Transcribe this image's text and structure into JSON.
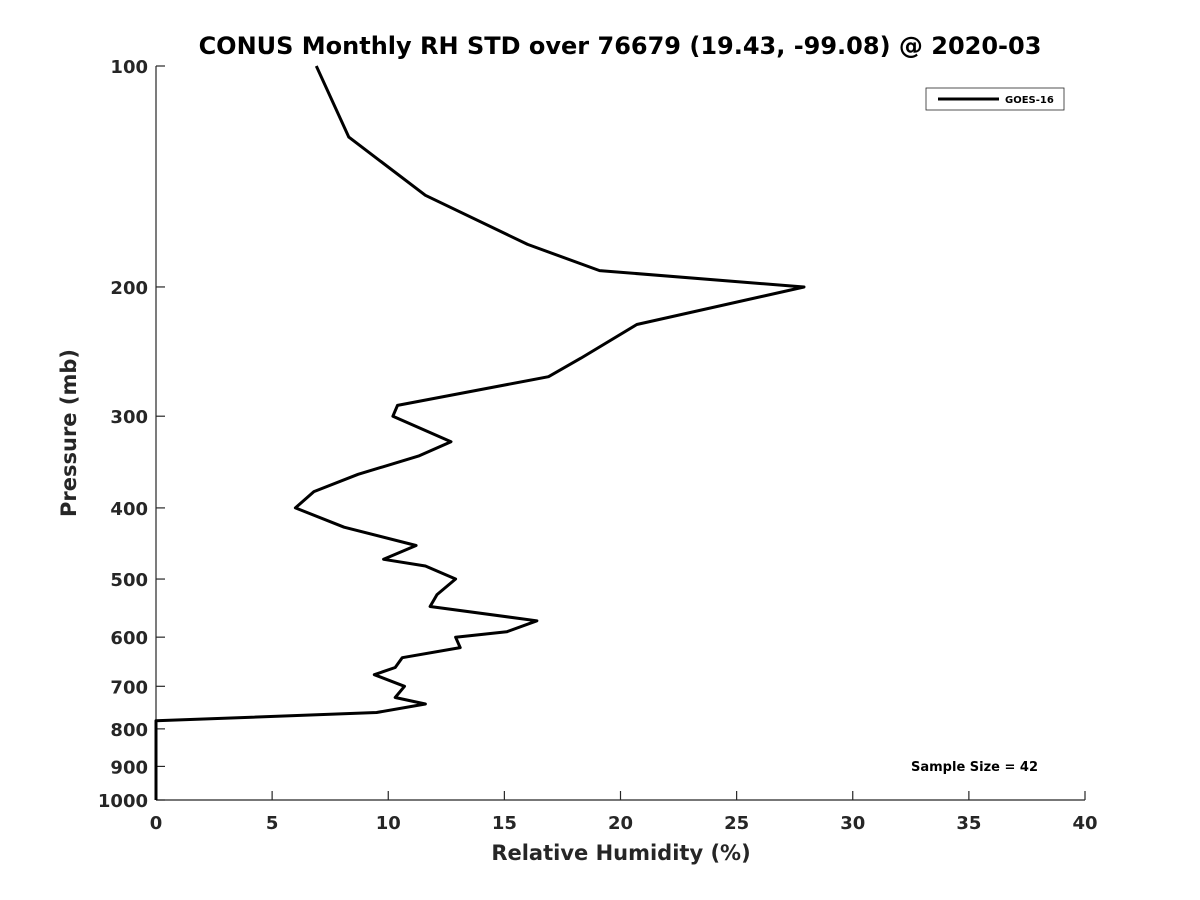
{
  "chart_data": {
    "type": "line",
    "title": "CONUS Monthly RH STD over 76679 (19.43, -99.08) @ 2020-03",
    "xlabel": "Relative Humidity (%)",
    "ylabel": "Pressure (mb)",
    "xlim": [
      0,
      40
    ],
    "ylim": [
      100,
      1000
    ],
    "y_scale": "log",
    "y_reversed": true,
    "x_ticks": [
      0,
      5,
      10,
      15,
      20,
      25,
      30,
      35,
      40
    ],
    "y_ticks": [
      100,
      200,
      300,
      400,
      500,
      600,
      700,
      800,
      900,
      1000
    ],
    "grid": false,
    "legend_position": "top-right",
    "series": [
      {
        "name": "GOES-16",
        "color": "#000000",
        "points": [
          [
            6.9,
            100
          ],
          [
            8.3,
            125
          ],
          [
            11.6,
            150
          ],
          [
            16.0,
            175
          ],
          [
            19.1,
            190
          ],
          [
            27.9,
            200
          ],
          [
            20.7,
            225
          ],
          [
            18.3,
            250
          ],
          [
            16.9,
            265
          ],
          [
            10.4,
            290
          ],
          [
            10.2,
            300
          ],
          [
            12.7,
            325
          ],
          [
            11.3,
            340
          ],
          [
            8.7,
            360
          ],
          [
            6.8,
            380
          ],
          [
            6.0,
            400
          ],
          [
            8.1,
            425
          ],
          [
            11.2,
            450
          ],
          [
            9.8,
            470
          ],
          [
            11.6,
            480
          ],
          [
            12.9,
            500
          ],
          [
            12.1,
            525
          ],
          [
            11.8,
            545
          ],
          [
            16.4,
            570
          ],
          [
            15.1,
            590
          ],
          [
            12.9,
            600
          ],
          [
            13.1,
            620
          ],
          [
            10.6,
            640
          ],
          [
            10.3,
            660
          ],
          [
            9.4,
            675
          ],
          [
            10.7,
            700
          ],
          [
            10.3,
            725
          ],
          [
            11.6,
            740
          ],
          [
            9.5,
            760
          ],
          [
            0.0,
            780
          ],
          [
            0.0,
            800
          ],
          [
            0.0,
            900
          ],
          [
            0.0,
            1000
          ]
        ]
      }
    ],
    "annotations": [
      "Sample Size = 42"
    ]
  }
}
